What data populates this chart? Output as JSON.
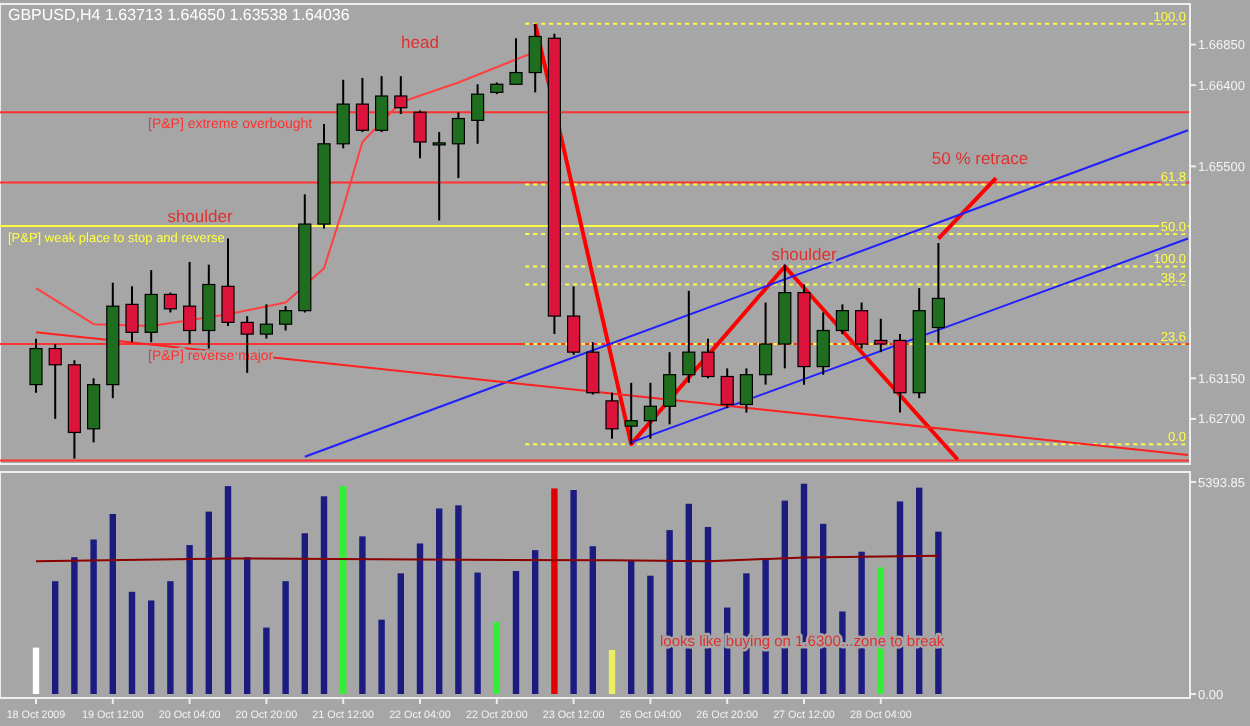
{
  "chart_data": [
    {
      "type": "candlestick",
      "title": "GBPUSD,H4 1.63713 1.64650 1.63538 1.64036",
      "tick_labels": "y",
      "categories": [
        null,
        null,
        null,
        null,
        null,
        null,
        null,
        null,
        null,
        null,
        null,
        null,
        null,
        null,
        null,
        null,
        null,
        null,
        null,
        null,
        null,
        null,
        null,
        null,
        null,
        null,
        null,
        null,
        null,
        null,
        null,
        null,
        null,
        null,
        null,
        null,
        null,
        null,
        null,
        null,
        null,
        null,
        null,
        null,
        null,
        null,
        null,
        null,
        null,
        null,
        null,
        null,
        null,
        null,
        null,
        null,
        null,
        null,
        null,
        null,
        null
      ],
      "ohlc": [
        [
          1.6308,
          1.6359,
          1.6299,
          1.6348
        ],
        [
          1.6348,
          1.6353,
          1.627,
          1.633
        ],
        [
          1.633,
          1.6335,
          1.6226,
          1.6255
        ],
        [
          1.6259,
          1.6315,
          1.6244,
          1.6308
        ],
        [
          1.6308,
          1.6421,
          1.6293,
          1.6395
        ],
        [
          1.6397,
          1.6417,
          1.6355,
          1.6366
        ],
        [
          1.6366,
          1.6435,
          1.6355,
          1.6408
        ],
        [
          1.6408,
          1.641,
          1.6388,
          1.6392
        ],
        [
          1.6395,
          1.6444,
          1.6353,
          1.6368
        ],
        [
          1.6368,
          1.6441,
          1.6348,
          1.6419
        ],
        [
          1.6417,
          1.647,
          1.6373,
          1.6377
        ],
        [
          1.6377,
          1.6384,
          1.6321,
          1.6364
        ],
        [
          1.6364,
          1.6397,
          1.6359,
          1.6375
        ],
        [
          1.6375,
          1.6395,
          1.6368,
          1.639
        ],
        [
          1.639,
          1.6519,
          1.6388,
          1.6486
        ],
        [
          1.6486,
          1.6597,
          1.6481,
          1.6575
        ],
        [
          1.6575,
          1.6646,
          1.657,
          1.6619
        ],
        [
          1.6619,
          1.6648,
          1.6588,
          1.659
        ],
        [
          1.659,
          1.665,
          1.6588,
          1.6628
        ],
        [
          1.6628,
          1.665,
          1.6608,
          1.6615
        ],
        [
          1.661,
          1.6612,
          1.6559,
          1.6577
        ],
        [
          1.6575,
          1.6588,
          1.649,
          1.6576
        ],
        [
          1.6575,
          1.661,
          1.6537,
          1.6603
        ],
        [
          1.6601,
          1.6641,
          1.6575,
          1.663
        ],
        [
          1.6632,
          1.6643,
          1.663,
          1.6641
        ],
        [
          1.6641,
          1.6692,
          1.6641,
          1.6654
        ],
        [
          1.6654,
          1.6708,
          1.6632,
          1.6694
        ],
        [
          1.6692,
          1.6697,
          1.6364,
          1.6384
        ],
        [
          1.6384,
          1.6417,
          1.6341,
          1.6344
        ],
        [
          1.6344,
          1.6355,
          1.6297,
          1.6299
        ],
        [
          1.629,
          1.6299,
          1.6248,
          1.6259
        ],
        [
          1.6262,
          1.631,
          1.6242,
          1.6268
        ],
        [
          1.6268,
          1.631,
          1.6248,
          1.6284
        ],
        [
          1.6284,
          1.6344,
          1.6264,
          1.6319
        ],
        [
          1.6319,
          1.6412,
          1.631,
          1.6344
        ],
        [
          1.6344,
          1.6359,
          1.6315,
          1.6317
        ],
        [
          1.6317,
          1.6326,
          1.6282,
          1.6286
        ],
        [
          1.6286,
          1.6326,
          1.6277,
          1.6319
        ],
        [
          1.6319,
          1.6399,
          1.6308,
          1.6353
        ],
        [
          1.6353,
          1.6441,
          1.6326,
          1.641
        ],
        [
          1.641,
          1.6419,
          1.6308,
          1.6328
        ],
        [
          1.6328,
          1.6388,
          1.6319,
          1.6368
        ],
        [
          1.6368,
          1.6397,
          1.6364,
          1.639
        ],
        [
          1.639,
          1.6399,
          1.6348,
          1.6353
        ],
        [
          1.6357,
          1.6381,
          1.6344,
          1.6353
        ],
        [
          1.6357,
          1.6364,
          1.6277,
          1.6299
        ],
        [
          1.6299,
          1.6415,
          1.6293,
          1.639
        ],
        [
          1.63713,
          1.6465,
          1.63538,
          1.64036
        ],
        null,
        null,
        null,
        null,
        null,
        null,
        null,
        null,
        null,
        null,
        null,
        null,
        null
      ],
      "colors": [
        "#1f6e1f",
        "#dc143c",
        "#dc143c",
        "#1f6e1f",
        "#1f6e1f",
        "#dc143c",
        "#1f6e1f",
        "#dc143c",
        "#dc143c",
        "#1f6e1f",
        "#dc143c",
        "#dc143c",
        "#1f6e1f",
        "#1f6e1f",
        "#1f6e1f",
        "#1f6e1f",
        "#1f6e1f",
        "#dc143c",
        "#1f6e1f",
        "#dc143c",
        "#dc143c",
        "#1f6e1f",
        "#1f6e1f",
        "#1f6e1f",
        "#1f6e1f",
        "#1f6e1f",
        "#1f6e1f",
        "#dc143c",
        "#dc143c",
        "#dc143c",
        "#dc143c",
        "#1f6e1f",
        "#1f6e1f",
        "#1f6e1f",
        "#1f6e1f",
        "#dc143c",
        "#dc143c",
        "#1f6e1f",
        "#1f6e1f",
        "#1f6e1f",
        "#dc143c",
        "#1f6e1f",
        "#1f6e1f",
        "#dc143c",
        "#dc143c",
        "#dc143c",
        "#1f6e1f",
        "#1f6e1f",
        null,
        null,
        null,
        null,
        null,
        null,
        null,
        null,
        null,
        null,
        null,
        null,
        null
      ],
      "ylim": [
        1.622,
        1.673
      ],
      "yticks": [
        {
          "value": 1.6685,
          "label": "1.66850"
        },
        {
          "value": 1.664,
          "label": "1.66400"
        },
        {
          "value": 1.655,
          "label": "1.65500"
        },
        {
          "value": 1.6315,
          "label": "1.63150"
        },
        {
          "value": 1.627,
          "label": "1.62700"
        }
      ],
      "series": [
        {
          "type": "line",
          "color": "#ff4040",
          "values": [
            1.6415,
            null,
            null,
            1.6375,
            null,
            null,
            1.6373,
            null,
            null,
            null,
            1.6386,
            null,
            null,
            1.6399,
            null,
            1.6437,
            1.6504,
            1.6577,
            null,
            1.6621,
            null,
            null,
            1.6643,
            null,
            null,
            null,
            1.6677,
            null,
            null,
            null,
            null,
            null,
            null,
            null,
            null,
            null,
            null,
            null,
            null,
            null,
            null,
            null,
            null,
            null,
            null,
            null,
            null,
            null,
            null,
            null,
            null,
            null,
            null,
            null,
            null,
            null,
            null,
            null,
            null,
            null,
            null
          ]
        },
        {
          "type": "line",
          "color": "#ff0000",
          "values": [
            null,
            null,
            null,
            null,
            null,
            null,
            null,
            null,
            null,
            null,
            null,
            null,
            null,
            null,
            null,
            null,
            null,
            null,
            null,
            null,
            null,
            null,
            null,
            null,
            null,
            null,
            1.6708,
            null,
            null,
            null,
            null,
            1.6242,
            null,
            null,
            null,
            null,
            null,
            null,
            null,
            1.6439,
            null,
            null,
            null,
            null,
            null,
            null,
            null,
            null,
            1.6225,
            null,
            null,
            null,
            null,
            null,
            null,
            null,
            null,
            null,
            null,
            null,
            null
          ]
        },
        {
          "type": "line",
          "color": "#ff0000",
          "values": [
            null,
            null,
            null,
            null,
            null,
            null,
            null,
            null,
            null,
            null,
            null,
            null,
            null,
            null,
            null,
            null,
            null,
            null,
            null,
            null,
            null,
            null,
            null,
            null,
            null,
            null,
            null,
            null,
            null,
            null,
            null,
            null,
            null,
            null,
            null,
            null,
            null,
            null,
            null,
            null,
            null,
            null,
            null,
            null,
            null,
            null,
            null,
            1.647,
            null,
            null,
            1.6537,
            null,
            null,
            null,
            null,
            null,
            null,
            null,
            null,
            null,
            null
          ]
        },
        {
          "type": "line",
          "color": "#2020ff",
          "values": [
            null,
            null,
            null,
            null,
            null,
            null,
            null,
            null,
            null,
            null,
            null,
            null,
            null,
            null,
            1.6228,
            null,
            null,
            null,
            null,
            null,
            null,
            null,
            null,
            null,
            null,
            null,
            null,
            null,
            null,
            null,
            null,
            null,
            null,
            null,
            null,
            null,
            null,
            null,
            null,
            null,
            null,
            null,
            null,
            null,
            null,
            null,
            null,
            null,
            null,
            null,
            null,
            null,
            null,
            null,
            null,
            null,
            null,
            null,
            null,
            null,
            1.659
          ]
        },
        {
          "type": "line",
          "color": "#2020ff",
          "values": [
            null,
            null,
            null,
            null,
            null,
            null,
            null,
            null,
            null,
            null,
            null,
            null,
            null,
            null,
            null,
            null,
            null,
            null,
            null,
            null,
            null,
            null,
            null,
            null,
            null,
            null,
            null,
            null,
            null,
            null,
            null,
            1.6244,
            null,
            null,
            null,
            null,
            null,
            null,
            null,
            null,
            null,
            null,
            null,
            null,
            null,
            null,
            null,
            null,
            null,
            null,
            null,
            null,
            null,
            null,
            null,
            null,
            null,
            null,
            null,
            null,
            1.647
          ]
        },
        {
          "type": "line",
          "color": "#ff2020",
          "values": [
            1.6366,
            null,
            null,
            null,
            null,
            null,
            null,
            null,
            null,
            null,
            null,
            null,
            null,
            null,
            null,
            null,
            null,
            null,
            null,
            null,
            null,
            null,
            null,
            null,
            null,
            null,
            null,
            null,
            null,
            null,
            null,
            null,
            null,
            null,
            null,
            null,
            null,
            null,
            null,
            null,
            null,
            null,
            null,
            null,
            null,
            null,
            null,
            null,
            null,
            null,
            null,
            null,
            null,
            null,
            null,
            null,
            null,
            null,
            null,
            null,
            1.623
          ]
        }
      ],
      "ref_lines": [
        {
          "axis": "y",
          "value": 1.661,
          "color": "#ff3030",
          "line_style": "solid",
          "label": "[P&P] extreme overbought"
        },
        {
          "axis": "y",
          "value": 1.6532,
          "color": "#ff3030",
          "line_style": "solid"
        },
        {
          "axis": "y",
          "value": 1.6484,
          "color": "#ffff40",
          "line_style": "solid",
          "label": "[P&P] weak place to stop and reverse"
        },
        {
          "axis": "y",
          "value": 1.6353,
          "color": "#ff3030",
          "line_style": "solid",
          "label": "[P&P] reverse major"
        },
        {
          "axis": "y",
          "value": 1.6224,
          "color": "#ff3030",
          "line_style": "solid"
        },
        {
          "axis": "y",
          "value": 1.6708,
          "color": "#ffff40",
          "line_style": "dotted"
        },
        {
          "axis": "y",
          "value": 1.653,
          "color": "#ffff40",
          "line_style": "dotted"
        },
        {
          "axis": "y",
          "value": 1.6475,
          "color": "#ffff40",
          "line_style": "dotted"
        },
        {
          "axis": "y",
          "value": 1.6439,
          "color": "#ffff40",
          "line_style": "dotted"
        },
        {
          "axis": "y",
          "value": 1.6419,
          "color": "#ffff40",
          "line_style": "dotted"
        },
        {
          "axis": "y",
          "value": 1.6353,
          "color": "#ffff40",
          "line_style": "dotted"
        },
        {
          "axis": "y",
          "value": 1.6242,
          "color": "#ffff40",
          "line_style": "dotted"
        }
      ],
      "annotations": [
        "head",
        "shoulder",
        "shoulder",
        "50 % retrace",
        {
          "text": "100.0",
          "y": 1.6708
        },
        {
          "text": "61.8",
          "y": 1.653
        },
        {
          "text": "50.0",
          "y": 1.6475
        },
        {
          "text": "100.0",
          "y": 1.6439
        },
        {
          "text": "38.2",
          "y": 1.6419
        },
        {
          "text": "23.6",
          "y": 1.6353
        },
        {
          "text": "0.0",
          "y": 1.6242
        }
      ]
    },
    {
      "type": "bar",
      "categories": [
        "18 Oct 2009",
        null,
        null,
        null,
        "19 Oct 12:00",
        null,
        null,
        null,
        "20 Oct 04:00",
        null,
        null,
        null,
        "20 Oct 20:00",
        null,
        null,
        null,
        "21 Oct 12:00",
        null,
        null,
        null,
        "22 Oct 04:00",
        null,
        null,
        null,
        "22 Oct 20:00",
        null,
        null,
        null,
        "23 Oct 12:00",
        null,
        null,
        null,
        "26 Oct 04:00",
        null,
        null,
        null,
        "26 Oct 20:00",
        null,
        null,
        null,
        "27 Oct 12:00",
        null,
        null,
        null,
        "28 Oct 04:00",
        null,
        null,
        null,
        null,
        null,
        null,
        null,
        null,
        null,
        null,
        null,
        null,
        null,
        null,
        null,
        null
      ],
      "values": [
        1180,
        2870,
        3480,
        3930,
        4580,
        2600,
        2380,
        2870,
        3790,
        4640,
        5290,
        3480,
        1690,
        2870,
        4090,
        5030,
        5290,
        4010,
        1890,
        3070,
        3830,
        4720,
        4800,
        3090,
        1830,
        3130,
        3660,
        5230,
        5190,
        3760,
        1120,
        3400,
        3010,
        4170,
        4840,
        4250,
        2200,
        3070,
        3460,
        4920,
        5350,
        4330,
        2100,
        3620,
        3220,
        4900,
        5250,
        4130,
        null,
        null,
        null,
        null,
        null,
        null,
        null,
        null,
        null,
        null,
        null,
        null,
        null
      ],
      "colors": [
        "#ffffff",
        "#1c1c80",
        "#1c1c80",
        "#1c1c80",
        "#1c1c80",
        "#1c1c80",
        "#1c1c80",
        "#1c1c80",
        "#1c1c80",
        "#1c1c80",
        "#1c1c80",
        "#1c1c80",
        "#1c1c80",
        "#1c1c80",
        "#1c1c80",
        "#1c1c80",
        "#33ee33",
        "#1c1c80",
        "#1c1c80",
        "#1c1c80",
        "#1c1c80",
        "#1c1c80",
        "#1c1c80",
        "#1c1c80",
        "#33ee33",
        "#1c1c80",
        "#1c1c80",
        "#e00000",
        "#1c1c80",
        "#1c1c80",
        "#eeee66",
        "#1c1c80",
        "#1c1c80",
        "#1c1c80",
        "#1c1c80",
        "#1c1c80",
        "#1c1c80",
        "#1c1c80",
        "#1c1c80",
        "#1c1c80",
        "#1c1c80",
        "#1c1c80",
        "#1c1c80",
        "#1c1c80",
        "#33ee33",
        "#1c1c80",
        "#1c1c80",
        "#1c1c80",
        null,
        null,
        null,
        null,
        null,
        null,
        null,
        null,
        null,
        null,
        null,
        null,
        null
      ],
      "ylim": [
        0,
        5393.85
      ],
      "yticks": [
        {
          "value": 5393.85,
          "label": "5393.85"
        },
        {
          "value": 0,
          "label": "0.00"
        }
      ],
      "series": [
        {
          "type": "line",
          "color": "#8b0000",
          "values": [
            3380,
            null,
            null,
            null,
            null,
            null,
            null,
            null,
            null,
            null,
            3450,
            null,
            null,
            null,
            null,
            null,
            null,
            null,
            null,
            null,
            3420,
            null,
            null,
            null,
            null,
            null,
            null,
            null,
            null,
            null,
            3400,
            null,
            null,
            null,
            null,
            3380,
            null,
            null,
            null,
            null,
            3470,
            null,
            null,
            null,
            null,
            null,
            null,
            3520,
            null,
            null,
            null,
            null,
            null,
            null,
            null,
            null,
            null,
            null,
            null,
            null,
            null
          ]
        }
      ],
      "annotations": [
        "looks like buying on 1.6300...zone to break"
      ]
    }
  ]
}
